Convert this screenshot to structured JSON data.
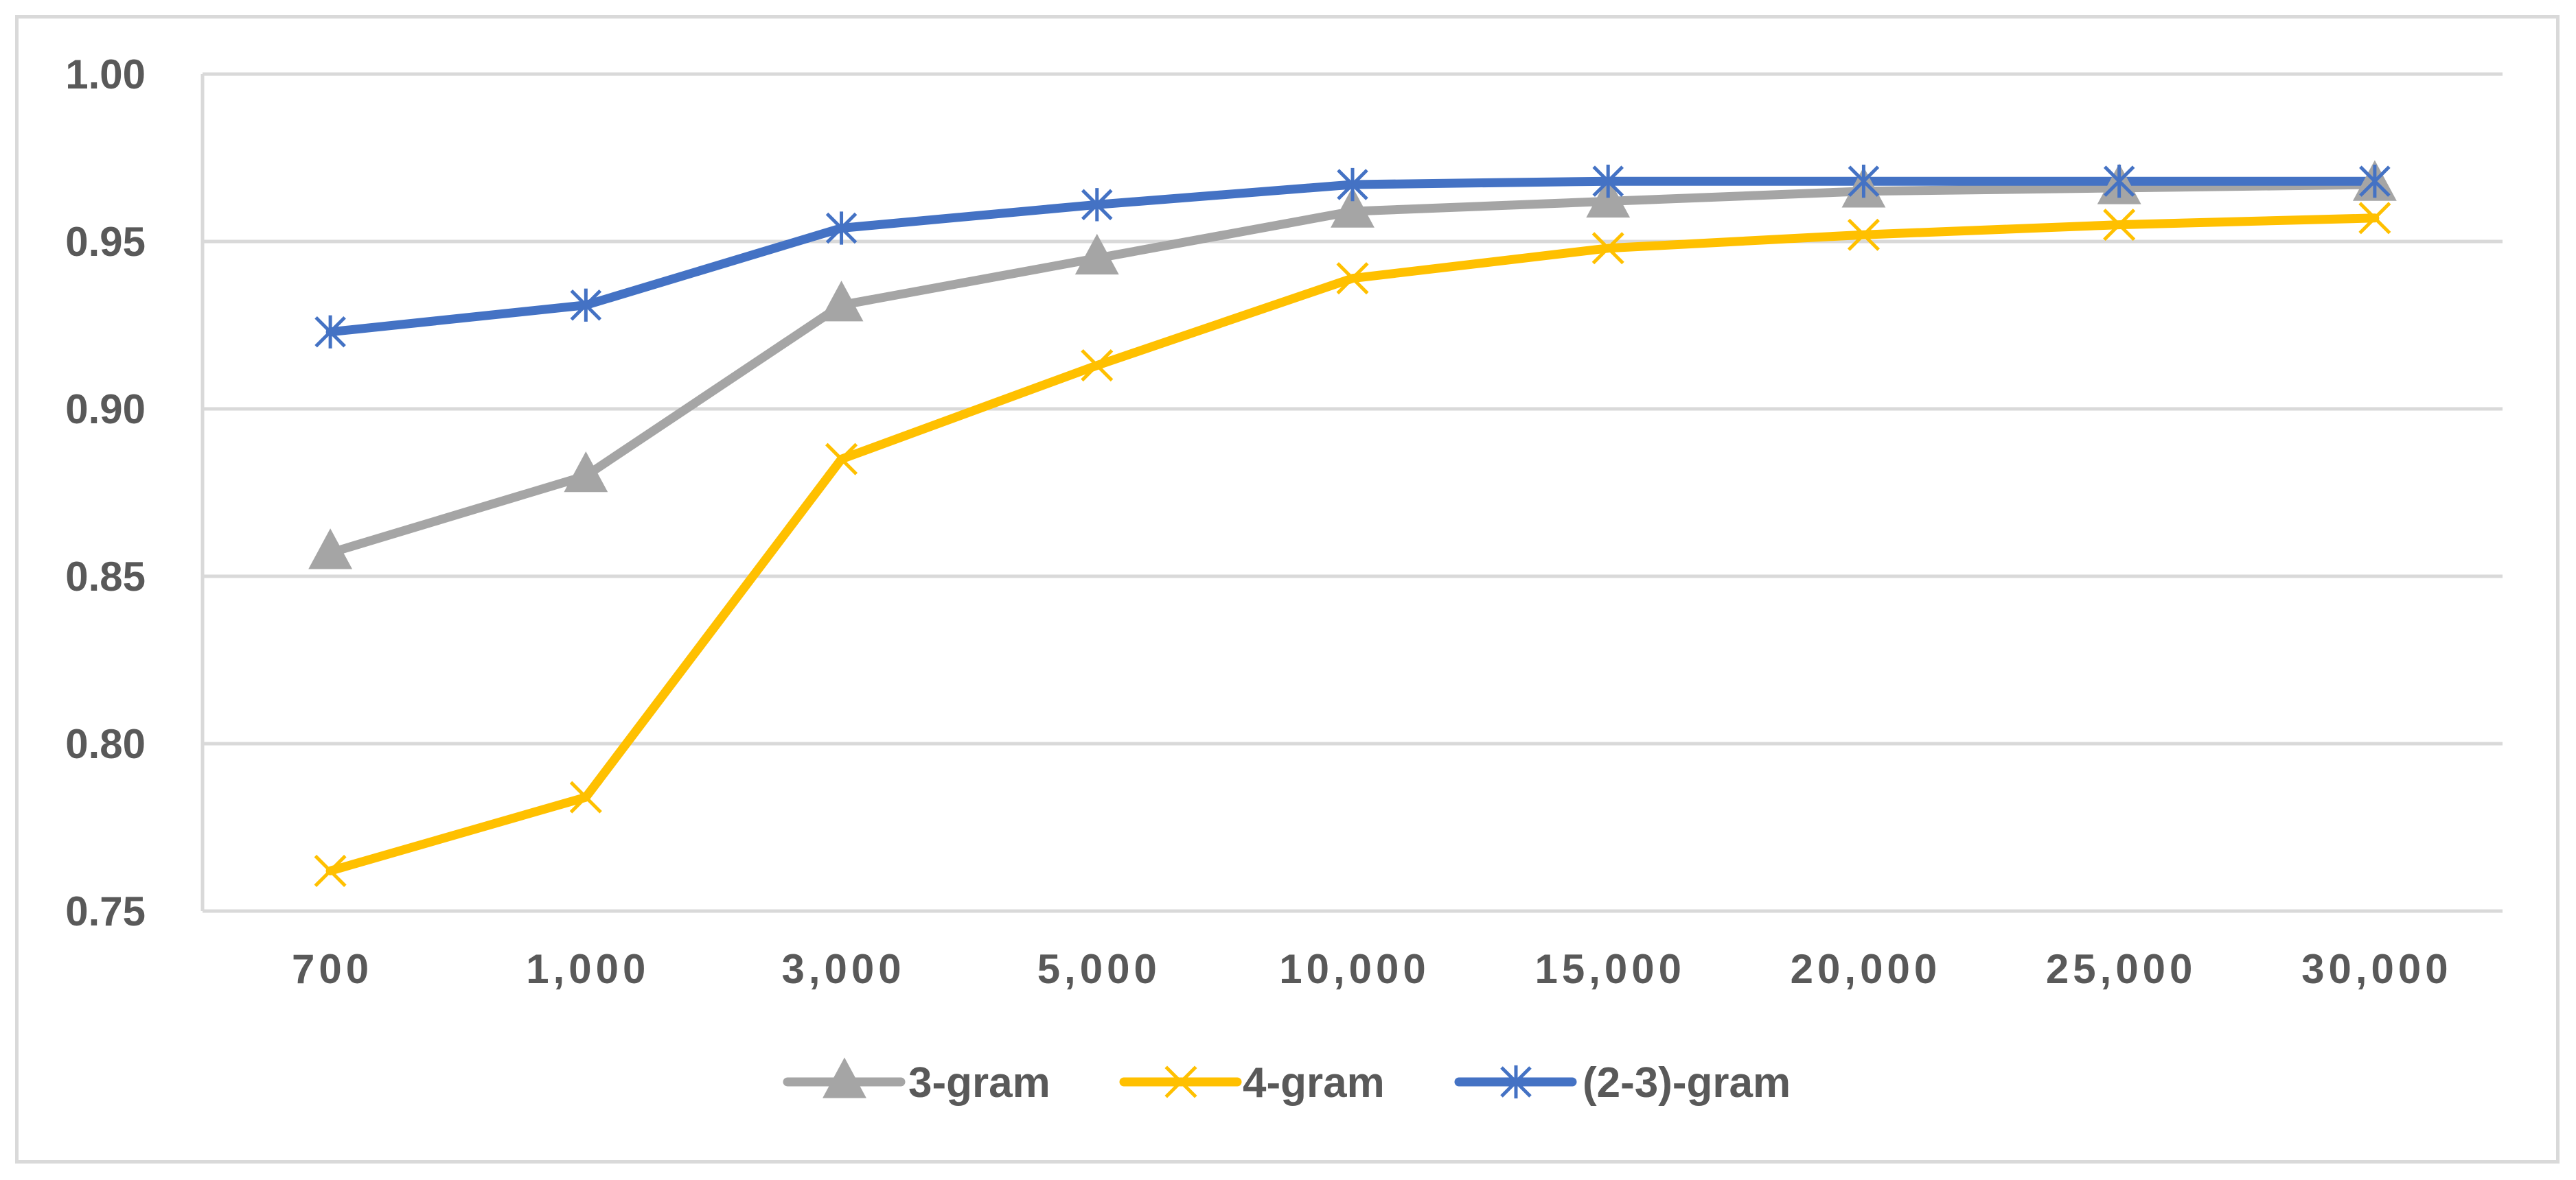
{
  "chart_data": {
    "type": "line",
    "title": "",
    "xlabel": "",
    "ylabel": "",
    "categories": [
      "700",
      "1,000",
      "3,000",
      "5,000",
      "10,000",
      "15,000",
      "20,000",
      "25,000",
      "30,000"
    ],
    "ylim": [
      0.75,
      1.0
    ],
    "yticks": [
      "0.75",
      "0.80",
      "0.85",
      "0.90",
      "0.95",
      "1.00"
    ],
    "ytick_values": [
      0.75,
      0.8,
      0.85,
      0.9,
      0.95,
      1.0
    ],
    "grid": true,
    "legend_position": "bottom",
    "series": [
      {
        "name": "3-gram",
        "color": "#a5a5a5",
        "marker": "triangle",
        "values": [
          0.857,
          0.88,
          0.931,
          0.945,
          0.959,
          0.962,
          0.965,
          0.966,
          0.967
        ]
      },
      {
        "name": "4-gram",
        "color": "#ffc000",
        "marker": "x",
        "values": [
          0.762,
          0.784,
          0.885,
          0.913,
          0.939,
          0.948,
          0.952,
          0.955,
          0.957
        ]
      },
      {
        "name": "(2-3)-gram",
        "color": "#4472c4",
        "marker": "asterisk",
        "values": [
          0.923,
          0.931,
          0.954,
          0.961,
          0.967,
          0.968,
          0.968,
          0.968,
          0.968
        ]
      }
    ]
  }
}
